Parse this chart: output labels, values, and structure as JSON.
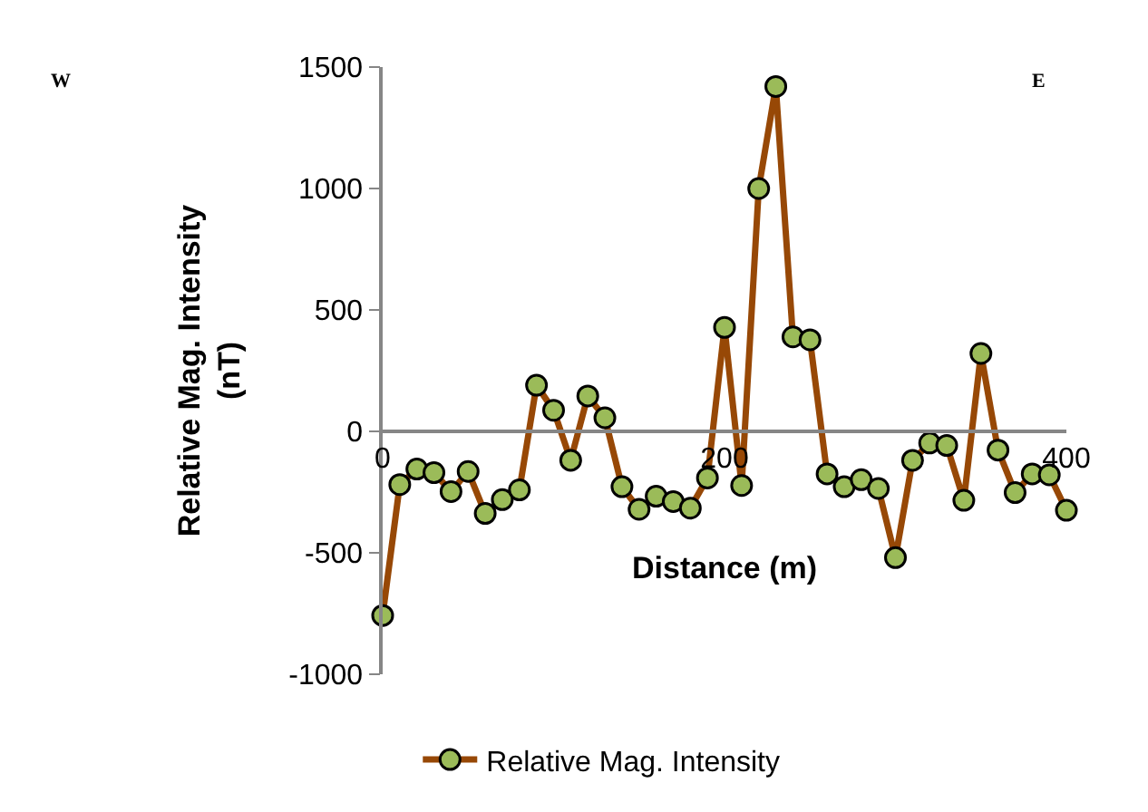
{
  "chart_data": {
    "type": "line",
    "x": [
      0,
      10,
      20,
      30,
      40,
      50,
      60,
      70,
      80,
      90,
      100,
      110,
      120,
      130,
      140,
      150,
      160,
      170,
      180,
      190,
      200,
      210,
      220,
      230,
      240,
      250,
      260,
      270,
      280,
      290,
      300,
      310,
      320,
      330,
      340,
      350,
      360,
      370,
      380,
      390,
      400
    ],
    "series": [
      {
        "name": "Relative Mag. Intensity",
        "color": "#974806",
        "values": [
          -758,
          -219,
          -155,
          -170,
          -248,
          -165,
          -338,
          -281,
          -241,
          190,
          87,
          -119,
          146,
          56,
          -228,
          -321,
          -267,
          -289,
          -316,
          -192,
          428,
          -223,
          1000,
          1420,
          389,
          377,
          -175,
          -228,
          -199,
          -235,
          -520,
          -119,
          -48,
          -58,
          -284,
          321,
          -77,
          -252,
          -175,
          -179,
          -325
        ]
      }
    ],
    "xlabel": "Distance (m)",
    "ylabel": "Relative Mag. Intensity (nT)",
    "xlim": [
      0,
      400
    ],
    "xticks": [
      0,
      200,
      400
    ],
    "ylim": [
      -1000,
      1500
    ],
    "yticks": [
      -1000,
      -500,
      0,
      500,
      1000,
      1500
    ],
    "annotations": [
      "W",
      "E"
    ],
    "grid": false,
    "legend": "bottom",
    "marker": "circle",
    "line_style": "solid"
  }
}
